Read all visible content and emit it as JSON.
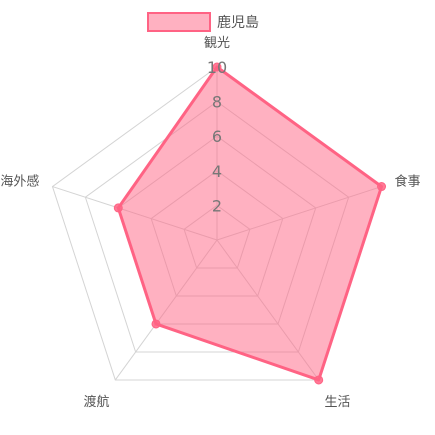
{
  "chart_data": {
    "type": "radar",
    "axes": [
      "観光",
      "食事",
      "生活",
      "渡航",
      "海外感"
    ],
    "range": [
      0,
      10
    ],
    "ticks": [
      2,
      4,
      6,
      8,
      10
    ],
    "grid": true,
    "legend_position": "top",
    "series": [
      {
        "name": "鹿児島",
        "values": [
          10,
          10,
          10,
          6,
          6
        ],
        "color": "#ff6384",
        "fill": "rgba(255, 99, 132, 0.5)"
      }
    ]
  }
}
